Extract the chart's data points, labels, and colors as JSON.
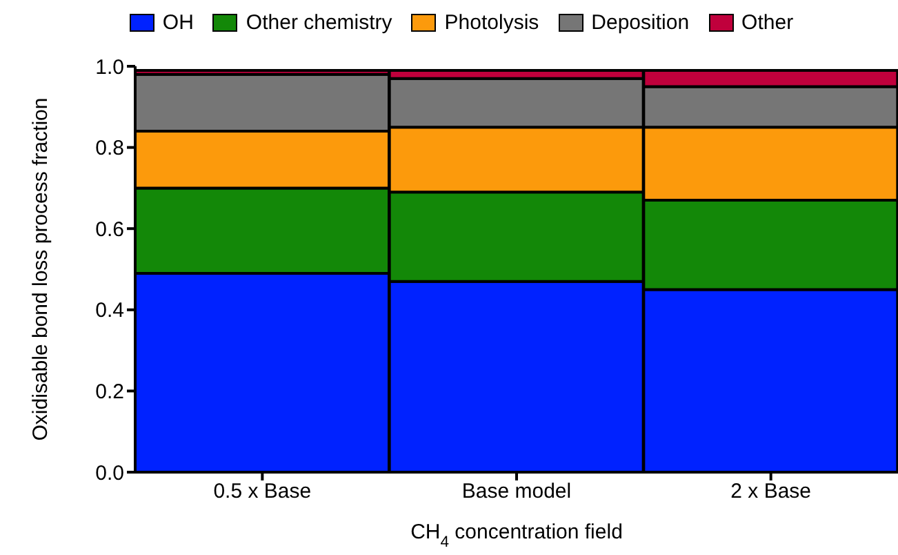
{
  "chart_data": {
    "type": "bar",
    "stacked": true,
    "categories": [
      "0.5 x Base",
      "Base model",
      "2 x Base"
    ],
    "series": [
      {
        "name": "OH",
        "color": "#0022ff",
        "values": [
          0.49,
          0.47,
          0.45
        ]
      },
      {
        "name": "Other chemistry",
        "color": "#138808",
        "values": [
          0.21,
          0.22,
          0.22
        ]
      },
      {
        "name": "Photolysis",
        "color": "#fc9a0c",
        "values": [
          0.14,
          0.16,
          0.18
        ]
      },
      {
        "name": "Deposition",
        "color": "#767676",
        "values": [
          0.14,
          0.12,
          0.1
        ]
      },
      {
        "name": "Other",
        "color": "#c0003c",
        "values": [
          0.01,
          0.02,
          0.04
        ]
      }
    ],
    "xlabel": "CH$_{4}$ concentration field",
    "ylabel": "Oxidisable bond loss process fraction",
    "ylim": [
      0,
      1
    ],
    "yticks": [
      {
        "value": 0,
        "label": "0.0"
      },
      {
        "value": 0.2,
        "label": "0.2"
      },
      {
        "value": 0.4,
        "label": "0.4"
      },
      {
        "value": 0.6,
        "label": "0.6"
      },
      {
        "value": 0.8,
        "label": "0.8"
      },
      {
        "value": 1,
        "label": "1.0"
      }
    ],
    "legend": "top",
    "grid": false
  }
}
